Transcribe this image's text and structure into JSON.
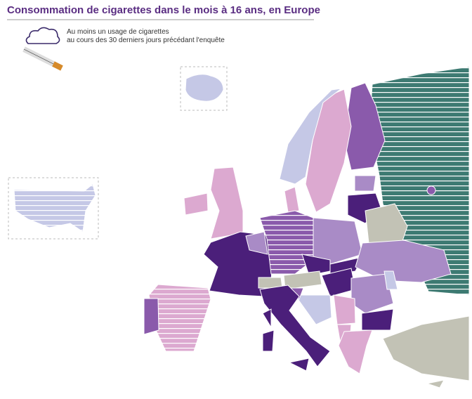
{
  "header": {
    "title": "Consommation de cigarettes dans le mois à 16 ans, en Europe"
  },
  "legend": {
    "lines": [
      "Au moins un usage de cigarettes",
      "au cours des 30 derniers jours précédant l'enquête"
    ]
  }
}
